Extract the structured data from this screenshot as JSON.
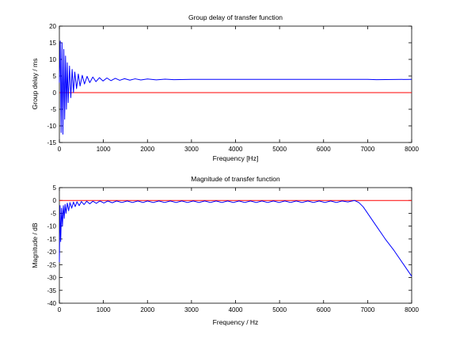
{
  "chart_data": [
    {
      "type": "line",
      "title": "Group delay of transfer function",
      "xlabel": "Frequency [Hz]",
      "ylabel": "Group delay / ms",
      "xlim": [
        0,
        8000
      ],
      "ylim": [
        -15,
        20
      ],
      "xticks": [
        0,
        1000,
        2000,
        3000,
        4000,
        5000,
        6000,
        7000,
        8000
      ],
      "yticks": [
        -15,
        -10,
        -5,
        0,
        5,
        10,
        15,
        20
      ],
      "grid": false,
      "legend": "none",
      "reference_line": {
        "y": 0,
        "color": "#ff0000"
      },
      "series": [
        {
          "color": "#0000ff",
          "points": [
            [
              0,
              3
            ],
            [
              20,
              15.5
            ],
            [
              40,
              -12
            ],
            [
              60,
              15
            ],
            [
              80,
              -12.5
            ],
            [
              100,
              13
            ],
            [
              120,
              -8
            ],
            [
              140,
              11
            ],
            [
              160,
              -5
            ],
            [
              180,
              9
            ],
            [
              200,
              -3
            ],
            [
              230,
              8
            ],
            [
              260,
              -1.5
            ],
            [
              290,
              7
            ],
            [
              320,
              0
            ],
            [
              350,
              6.2
            ],
            [
              390,
              1.2
            ],
            [
              430,
              5.6
            ],
            [
              470,
              2
            ],
            [
              520,
              5.2
            ],
            [
              570,
              2.6
            ],
            [
              630,
              4.9
            ],
            [
              690,
              3
            ],
            [
              760,
              4.7
            ],
            [
              830,
              3.3
            ],
            [
              910,
              4.5
            ],
            [
              990,
              3.5
            ],
            [
              1080,
              4.4
            ],
            [
              1170,
              3.6
            ],
            [
              1270,
              4.3
            ],
            [
              1370,
              3.7
            ],
            [
              1480,
              4.2
            ],
            [
              1600,
              3.75
            ],
            [
              1720,
              4.15
            ],
            [
              1850,
              3.8
            ],
            [
              2000,
              4.1
            ],
            [
              2200,
              3.85
            ],
            [
              2400,
              4.05
            ],
            [
              2600,
              3.9
            ],
            [
              3000,
              4.0
            ],
            [
              4000,
              4.0
            ],
            [
              5000,
              4.0
            ],
            [
              6000,
              4.0
            ],
            [
              7000,
              4.0
            ],
            [
              7200,
              3.9
            ],
            [
              8000,
              4.0
            ]
          ]
        }
      ]
    },
    {
      "type": "line",
      "title": "Magnitude of transfer function",
      "xlabel": "Frequency / Hz",
      "ylabel": "Magnitude / dB",
      "xlim": [
        0,
        8000
      ],
      "ylim": [
        -40,
        5
      ],
      "xticks": [
        0,
        1000,
        2000,
        3000,
        4000,
        5000,
        6000,
        7000,
        8000
      ],
      "yticks": [
        -40,
        -35,
        -30,
        -25,
        -20,
        -15,
        -10,
        -5,
        0,
        5
      ],
      "grid": false,
      "legend": "none",
      "reference_line": {
        "y": 0,
        "color": "#ff0000"
      },
      "series": [
        {
          "color": "#0000ff",
          "points": [
            [
              0,
              -24
            ],
            [
              15,
              -2
            ],
            [
              30,
              -16
            ],
            [
              50,
              -3
            ],
            [
              70,
              -10
            ],
            [
              90,
              -2
            ],
            [
              110,
              -7
            ],
            [
              130,
              -1.5
            ],
            [
              150,
              -5
            ],
            [
              180,
              -1
            ],
            [
              210,
              -4
            ],
            [
              240,
              -0.8
            ],
            [
              280,
              -3
            ],
            [
              320,
              -0.6
            ],
            [
              360,
              -2.4
            ],
            [
              400,
              -0.5
            ],
            [
              450,
              -2
            ],
            [
              500,
              -0.4
            ],
            [
              560,
              -1.6
            ],
            [
              620,
              -0.3
            ],
            [
              690,
              -1.3
            ],
            [
              760,
              -0.3
            ],
            [
              840,
              -1.1
            ],
            [
              920,
              -0.2
            ],
            [
              1010,
              -1.0
            ],
            [
              1100,
              -0.2
            ],
            [
              1200,
              -0.9
            ],
            [
              1300,
              -0.2
            ],
            [
              1420,
              -0.8
            ],
            [
              1540,
              -0.2
            ],
            [
              1660,
              -0.8
            ],
            [
              1780,
              -0.2
            ],
            [
              1900,
              -0.8
            ],
            [
              2000,
              -0.2
            ],
            [
              2130,
              -0.8
            ],
            [
              2260,
              -0.2
            ],
            [
              2390,
              -0.8
            ],
            [
              2520,
              -0.2
            ],
            [
              2650,
              -0.8
            ],
            [
              2780,
              -0.2
            ],
            [
              2910,
              -0.8
            ],
            [
              3040,
              -0.2
            ],
            [
              3170,
              -0.8
            ],
            [
              3300,
              -0.2
            ],
            [
              3430,
              -0.8
            ],
            [
              3560,
              -0.2
            ],
            [
              3690,
              -0.8
            ],
            [
              3820,
              -0.2
            ],
            [
              3950,
              -0.8
            ],
            [
              4080,
              -0.2
            ],
            [
              4210,
              -0.8
            ],
            [
              4340,
              -0.2
            ],
            [
              4470,
              -0.8
            ],
            [
              4600,
              -0.2
            ],
            [
              4730,
              -0.8
            ],
            [
              4860,
              -0.2
            ],
            [
              4990,
              -0.8
            ],
            [
              5120,
              -0.2
            ],
            [
              5250,
              -0.8
            ],
            [
              5380,
              -0.2
            ],
            [
              5510,
              -0.8
            ],
            [
              5640,
              -0.2
            ],
            [
              5770,
              -0.8
            ],
            [
              5900,
              -0.2
            ],
            [
              6030,
              -0.8
            ],
            [
              6160,
              -0.2
            ],
            [
              6290,
              -0.8
            ],
            [
              6420,
              -0.2
            ],
            [
              6550,
              -0.6
            ],
            [
              6700,
              0
            ],
            [
              6800,
              -0.8
            ],
            [
              6900,
              -2.5
            ],
            [
              7000,
              -5
            ],
            [
              7200,
              -10
            ],
            [
              7400,
              -15
            ],
            [
              7600,
              -19.5
            ],
            [
              7800,
              -24.5
            ],
            [
              8000,
              -29.5
            ]
          ]
        }
      ]
    }
  ]
}
